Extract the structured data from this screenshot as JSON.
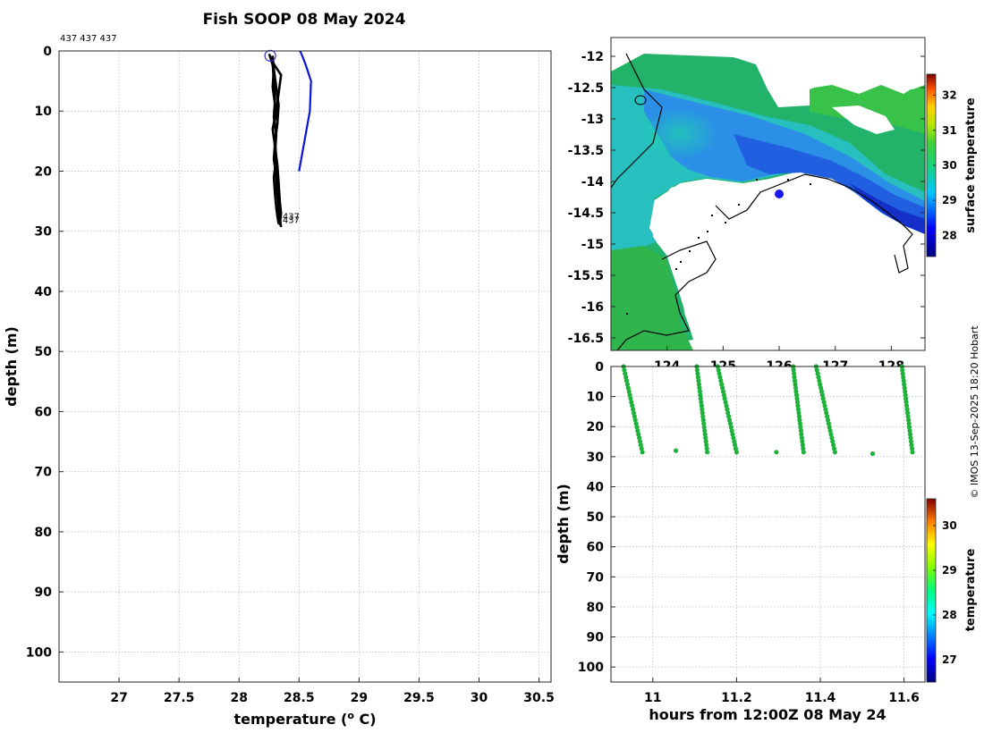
{
  "chart_data": [
    {
      "id": "profile",
      "type": "line",
      "title": "Fish SOOP 08 May 2024",
      "xlabel": "temperature (",
      "xlabel_sup": "o",
      "xlabel_unit": " C)",
      "ylabel": "depth (m)",
      "xlim": [
        26.5,
        30.6
      ],
      "ylim": [
        105,
        0
      ],
      "xticks": [
        27,
        27.5,
        28,
        28.5,
        29,
        29.5,
        30,
        30.5
      ],
      "xtick_labels": [
        "27",
        "27.5",
        "28",
        "28.5",
        "29",
        "29.5",
        "30",
        "30.5"
      ],
      "yticks": [
        0,
        10,
        20,
        30,
        40,
        50,
        60,
        70,
        80,
        90,
        100
      ],
      "ytick_labels": [
        "0",
        "10",
        "20",
        "30",
        "40",
        "50",
        "60",
        "70",
        "80",
        "90",
        "100"
      ],
      "top_note": "437 437 437",
      "end_labels": [
        "437",
        "437"
      ],
      "series": [
        {
          "name": "profile-1",
          "color": "#000000",
          "x": [
            28.25,
            28.28,
            28.29,
            28.3,
            28.29,
            28.31,
            28.3,
            28.32,
            28.31,
            28.33,
            28.32,
            28.34
          ],
          "y": [
            0.5,
            2,
            5,
            8,
            11,
            14,
            17,
            20,
            23,
            25,
            27,
            28.5
          ]
        },
        {
          "name": "profile-2",
          "color": "#000000",
          "x": [
            28.26,
            28.29,
            28.31,
            28.33,
            28.32,
            28.3,
            28.31,
            28.29,
            28.3,
            28.31,
            28.32,
            28.33
          ],
          "y": [
            1,
            3,
            6,
            9,
            12,
            15,
            18,
            21,
            24,
            26,
            27.5,
            28.8
          ]
        },
        {
          "name": "profile-3",
          "color": "#000000",
          "x": [
            28.27,
            28.3,
            28.35,
            28.33,
            28.31,
            28.28,
            28.3,
            28.32,
            28.33,
            28.34,
            28.35,
            28.34
          ],
          "y": [
            1.5,
            2.5,
            4,
            7,
            10,
            13,
            16,
            19,
            22,
            25,
            27,
            29
          ]
        },
        {
          "name": "profile-4",
          "color": "#000000",
          "x": [
            28.28,
            28.29,
            28.28,
            28.3,
            28.32,
            28.3,
            28.29,
            28.31,
            28.32,
            28.33,
            28.34,
            28.35
          ],
          "y": [
            0.8,
            3,
            6,
            9,
            12,
            15,
            18,
            21,
            24,
            26,
            27.8,
            29.3
          ]
        },
        {
          "name": "reference",
          "color": "#0a14d8",
          "x": [
            28.51,
            28.55,
            28.6,
            28.59,
            28.5
          ],
          "y": [
            0,
            2,
            5,
            10,
            20
          ]
        }
      ],
      "marker": {
        "x": 28.26,
        "y": 0.8,
        "color": "#2a2ad8"
      }
    },
    {
      "id": "map",
      "type": "heatmap",
      "yticks": [
        -12,
        -12.5,
        -13,
        -13.5,
        -14,
        -14.5,
        -15,
        -15.5,
        -16,
        -16.5
      ],
      "ytick_labels": [
        "-12",
        "-12.5",
        "-13",
        "-13.5",
        "-14",
        "-14.5",
        "-15",
        "-15.5",
        "-16",
        "-16.5"
      ],
      "xticks": [
        124,
        125,
        126,
        127,
        128
      ],
      "xtick_labels": [
        "124",
        "125",
        "126",
        "127",
        "128"
      ],
      "xlim": [
        123.0,
        128.6
      ],
      "ylim": [
        -16.7,
        -11.7
      ],
      "colorbar": {
        "label": "surface temperature",
        "range": [
          27.4,
          32.6
        ],
        "ticks": [
          28,
          29,
          30,
          31,
          32
        ],
        "tick_labels": [
          "28",
          "29",
          "30",
          "31",
          "32"
        ]
      },
      "track": {
        "lon": 126.0,
        "lat": -14.2
      }
    },
    {
      "id": "depth-time",
      "type": "scatter",
      "xlabel": "hours from 12:00Z 08 May 24",
      "ylabel": "depth (m)",
      "xlim": [
        10.9,
        11.65
      ],
      "ylim": [
        105,
        0
      ],
      "xticks": [
        11,
        11.2,
        11.4,
        11.6
      ],
      "xtick_labels": [
        "11",
        "11.2",
        "11.4",
        "11.6"
      ],
      "yticks": [
        0,
        10,
        20,
        30,
        40,
        50,
        60,
        70,
        80,
        90,
        100
      ],
      "ytick_labels": [
        "0",
        "10",
        "20",
        "30",
        "40",
        "50",
        "60",
        "70",
        "80",
        "90",
        "100"
      ],
      "color": "#1fb23a",
      "casts": [
        {
          "t_start": 10.93,
          "t_end": 10.975,
          "direction": "down"
        },
        {
          "t_start": 11.13,
          "t_end": 11.105,
          "direction": "up"
        },
        {
          "t_start": 11.155,
          "t_end": 11.2,
          "direction": "down"
        },
        {
          "t_start": 11.36,
          "t_end": 11.335,
          "direction": "up"
        },
        {
          "t_start": 11.39,
          "t_end": 11.435,
          "direction": "down"
        },
        {
          "t_start": 11.62,
          "t_end": 11.595,
          "direction": "up"
        }
      ],
      "max_depth": 28.5,
      "isolated_points": [
        {
          "t": 11.055,
          "d": 28
        },
        {
          "t": 11.295,
          "d": 28.5
        },
        {
          "t": 11.525,
          "d": 29
        }
      ],
      "colorbar": {
        "label": "temperature",
        "range": [
          26.5,
          30.6
        ],
        "ticks": [
          27,
          28,
          29,
          30
        ],
        "tick_labels": [
          "27",
          "28",
          "29",
          "30"
        ]
      }
    }
  ],
  "credit": "© IMOS 13-Sep-2025 18:20 Hobart"
}
